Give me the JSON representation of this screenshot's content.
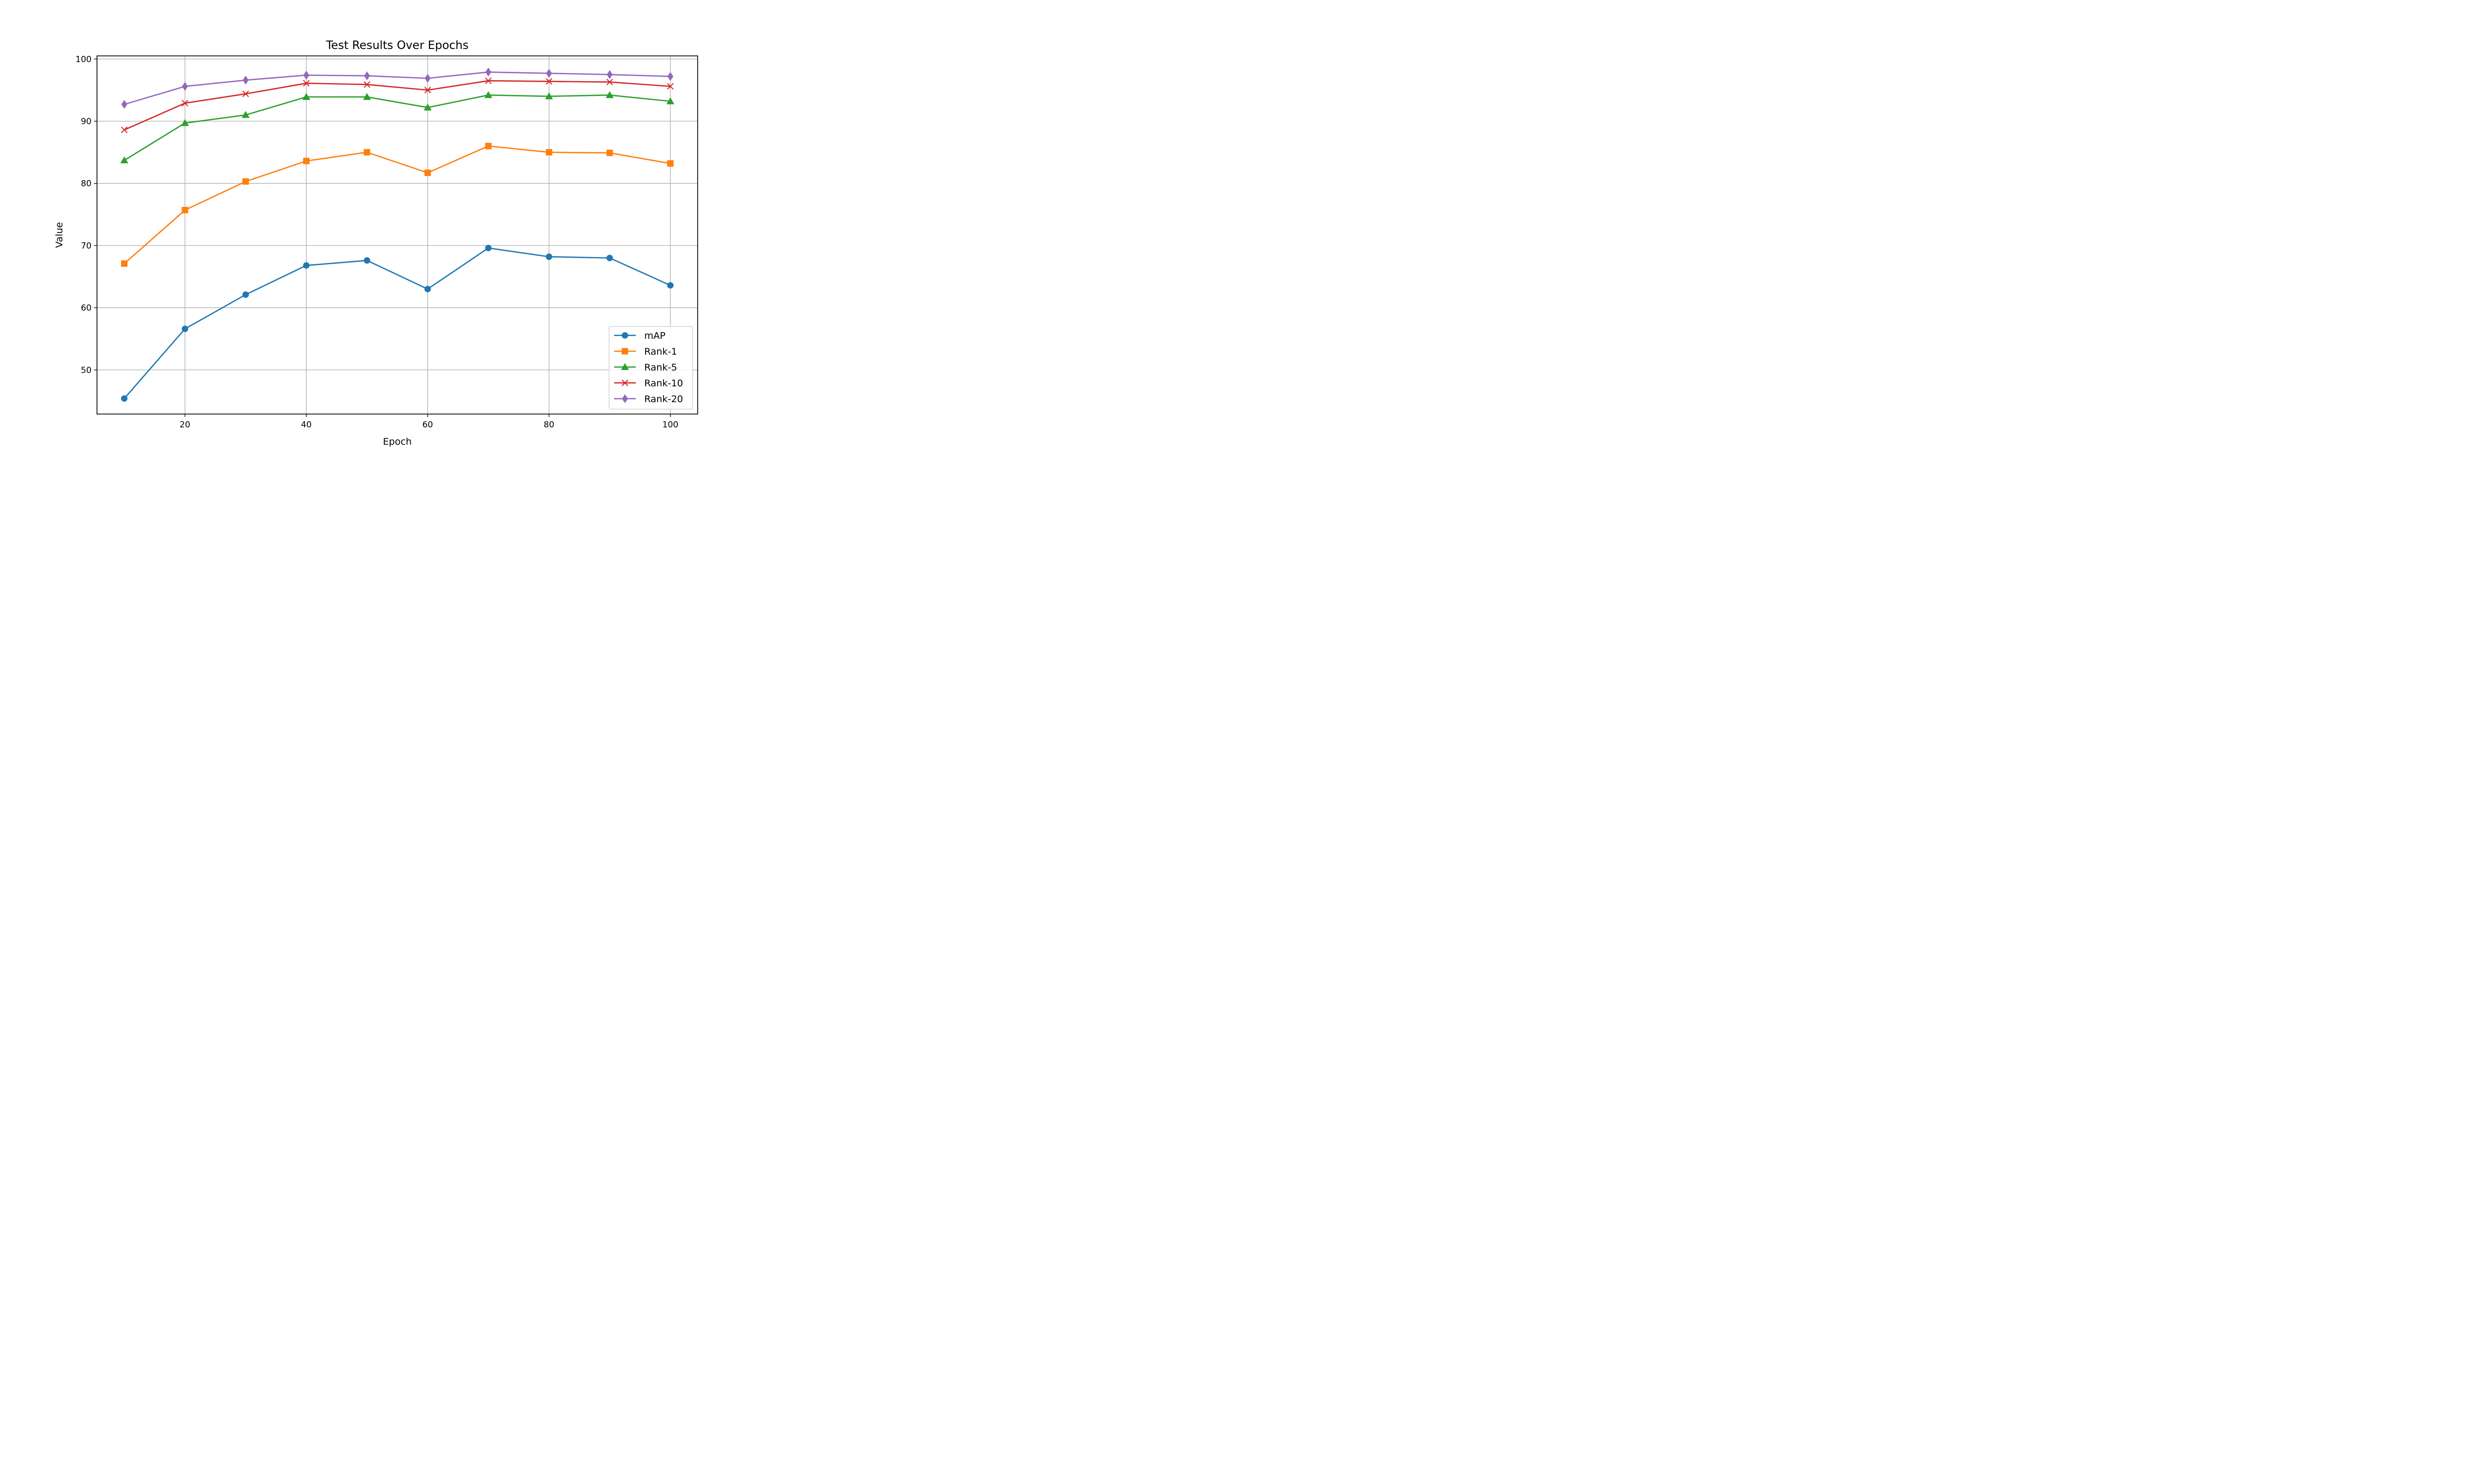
{
  "chart_data": {
    "type": "line",
    "title": "Test Results Over Epochs",
    "xlabel": "Epoch",
    "ylabel": "Value",
    "x": [
      10,
      20,
      30,
      40,
      50,
      60,
      70,
      80,
      90,
      100
    ],
    "xlim": [
      5.5,
      104.5
    ],
    "ylim": [
      42.9,
      100.5
    ],
    "xticks": [
      20,
      40,
      60,
      80,
      100
    ],
    "yticks": [
      50,
      60,
      70,
      80,
      90,
      100
    ],
    "grid": true,
    "legend_position": "lower-right",
    "series": [
      {
        "name": "mAP",
        "color": "#1f77b4",
        "marker": "circle",
        "values": [
          45.4,
          56.6,
          62.1,
          66.8,
          67.6,
          63.0,
          69.6,
          68.2,
          68.0,
          63.6
        ]
      },
      {
        "name": "Rank-1",
        "color": "#ff7f0e",
        "marker": "square",
        "values": [
          67.1,
          75.7,
          80.3,
          83.6,
          85.0,
          81.7,
          86.0,
          85.0,
          84.9,
          83.2
        ]
      },
      {
        "name": "Rank-5",
        "color": "#2ca02c",
        "marker": "triangle",
        "values": [
          83.7,
          89.7,
          91.0,
          93.9,
          93.9,
          92.2,
          94.2,
          94.0,
          94.2,
          93.2
        ]
      },
      {
        "name": "Rank-10",
        "color": "#d62728",
        "marker": "x",
        "values": [
          88.6,
          92.9,
          94.4,
          96.1,
          95.9,
          95.0,
          96.5,
          96.4,
          96.3,
          95.6
        ]
      },
      {
        "name": "Rank-20",
        "color": "#9467bd",
        "marker": "diamond",
        "values": [
          92.7,
          95.6,
          96.6,
          97.4,
          97.3,
          96.9,
          97.9,
          97.7,
          97.5,
          97.2
        ]
      }
    ]
  }
}
